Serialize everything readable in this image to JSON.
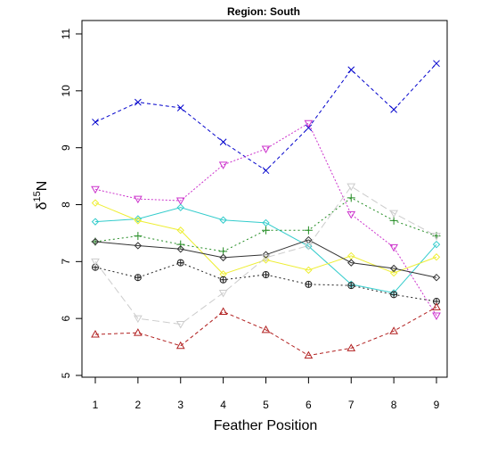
{
  "chart_data": {
    "type": "line",
    "title": "Region: South",
    "xlabel": "Feather Position",
    "ylabel": {
      "base": "δ",
      "superscript": "15",
      "element": "N"
    },
    "x": [
      1,
      2,
      3,
      4,
      5,
      6,
      7,
      8,
      9
    ],
    "xlim": [
      1,
      9
    ],
    "ylim": [
      5,
      11
    ],
    "xticks": [
      1,
      2,
      3,
      4,
      5,
      6,
      7,
      8,
      9
    ],
    "yticks": [
      5,
      6,
      7,
      8,
      9,
      10,
      11
    ],
    "grid": false,
    "legend": "none",
    "series": [
      {
        "color": "#0000cc",
        "dash": "4,3",
        "marker": "x",
        "values": [
          9.45,
          9.8,
          9.7,
          9.1,
          8.6,
          9.35,
          10.37,
          9.67,
          10.48
        ]
      },
      {
        "color": "#cc33cc",
        "dash": "2,2",
        "marker": "triangle-down",
        "values": [
          8.27,
          8.1,
          8.07,
          8.7,
          8.98,
          9.43,
          7.83,
          7.25,
          6.05
        ]
      },
      {
        "color": "#33cccc",
        "dash": "",
        "marker": "diamond",
        "values": [
          7.7,
          7.75,
          7.95,
          7.73,
          7.68,
          7.27,
          6.6,
          6.45,
          7.3
        ]
      },
      {
        "color": "#eeee33",
        "dash": "",
        "marker": "diamond",
        "values": [
          8.03,
          7.72,
          7.55,
          6.78,
          7.03,
          6.85,
          7.1,
          6.8,
          7.08
        ]
      },
      {
        "color": "#228b22",
        "dash": "2,3",
        "marker": "plus",
        "values": [
          7.35,
          7.45,
          7.3,
          7.18,
          7.55,
          7.55,
          8.12,
          7.72,
          7.45
        ]
      },
      {
        "color": "#333333",
        "dash": "",
        "marker": "diamond",
        "values": [
          7.35,
          7.28,
          7.22,
          7.07,
          7.12,
          7.38,
          6.98,
          6.88,
          6.72
        ]
      },
      {
        "color": "#222222",
        "dash": "2,3",
        "marker": "circle-plus",
        "values": [
          6.9,
          6.72,
          6.98,
          6.68,
          6.77,
          6.6,
          6.58,
          6.42,
          6.3
        ]
      },
      {
        "color": "#cccccc",
        "dash": "8,4",
        "marker": "triangle-down",
        "values": [
          7.0,
          6.0,
          5.9,
          6.45,
          7.07,
          7.28,
          8.32,
          7.85,
          7.45
        ]
      },
      {
        "color": "#b22222",
        "dash": "4,3",
        "marker": "triangle-up",
        "values": [
          5.72,
          5.75,
          5.52,
          6.12,
          5.8,
          5.35,
          5.48,
          5.78,
          6.2
        ]
      }
    ]
  }
}
